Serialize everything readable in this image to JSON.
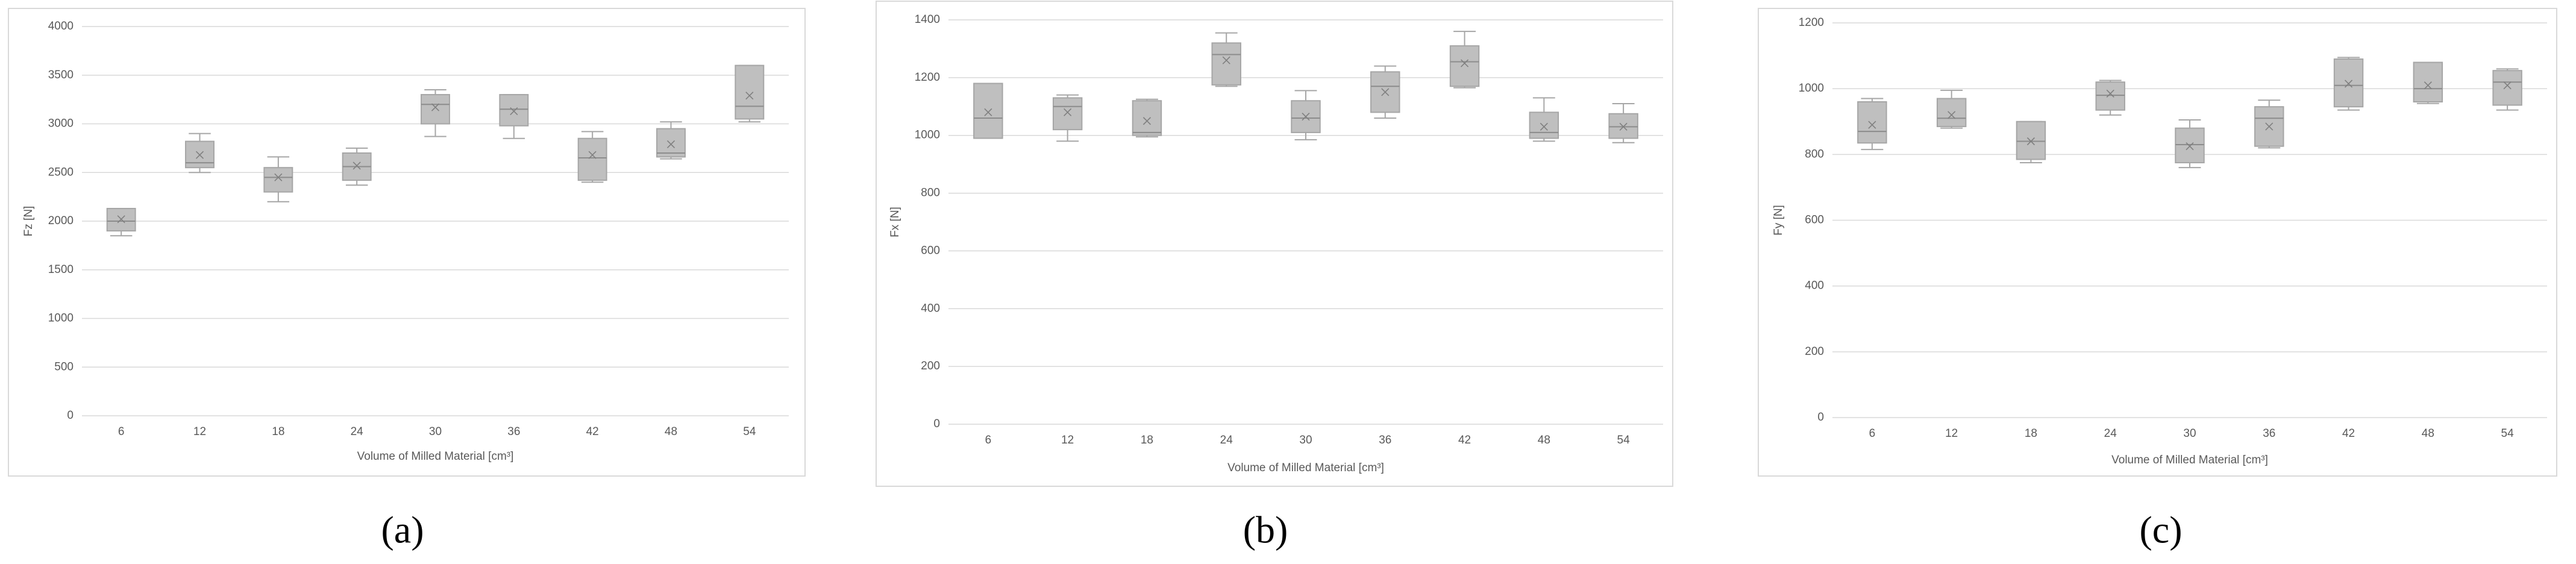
{
  "chart_data": [
    {
      "type": "box",
      "caption": "(a)",
      "y_label": "Fz [N]",
      "x_label": "Volume of Milled Material [cm³]",
      "categories": [
        "6",
        "12",
        "18",
        "24",
        "30",
        "36",
        "42",
        "48",
        "54"
      ],
      "min": [
        1850,
        2500,
        2200,
        2370,
        2870,
        2850,
        2400,
        2640,
        3020
      ],
      "q1": [
        1900,
        2550,
        2300,
        2420,
        3000,
        2980,
        2420,
        2660,
        3050
      ],
      "median": [
        2000,
        2600,
        2450,
        2560,
        3200,
        3150,
        2650,
        2700,
        3180
      ],
      "q3": [
        2130,
        2820,
        2550,
        2700,
        3300,
        3300,
        2850,
        2950,
        3600
      ],
      "max": [
        2130,
        2900,
        2660,
        2750,
        3350,
        3300,
        2920,
        3020,
        3600
      ],
      "mean": [
        2020,
        2680,
        2450,
        2570,
        3170,
        3130,
        2680,
        2790,
        3290
      ],
      "color": "#bfbfbf",
      "ylim": [
        0,
        4000
      ],
      "yticks": [
        0,
        500,
        1000,
        1500,
        2000,
        2500,
        3000,
        3500,
        4000
      ],
      "grid": true
    },
    {
      "type": "box",
      "caption": "(b)",
      "y_label": "Fx [N]",
      "x_label": "Volume of Milled Material [cm³]",
      "categories": [
        "6",
        "12",
        "18",
        "24",
        "30",
        "36",
        "42",
        "48",
        "54"
      ],
      "min": [
        990,
        980,
        995,
        1170,
        985,
        1060,
        1165,
        980,
        975
      ],
      "q1": [
        990,
        1020,
        1000,
        1175,
        1010,
        1080,
        1170,
        990,
        990
      ],
      "median": [
        1060,
        1100,
        1010,
        1280,
        1060,
        1170,
        1255,
        1010,
        1030
      ],
      "q3": [
        1180,
        1130,
        1120,
        1320,
        1120,
        1220,
        1310,
        1080,
        1075
      ],
      "max": [
        1180,
        1140,
        1125,
        1355,
        1155,
        1240,
        1360,
        1130,
        1110
      ],
      "mean": [
        1080,
        1080,
        1050,
        1260,
        1065,
        1150,
        1250,
        1030,
        1030
      ],
      "color": "#bfbfbf",
      "ylim": [
        0,
        1400
      ],
      "yticks": [
        0,
        200,
        400,
        600,
        800,
        1000,
        1200,
        1400
      ],
      "grid": true
    },
    {
      "type": "box",
      "caption": "(c)",
      "y_label": "Fy [N]",
      "x_label": "Volume of Milled Material [cm³]",
      "categories": [
        "6",
        "12",
        "18",
        "24",
        "30",
        "36",
        "42",
        "48",
        "54"
      ],
      "min": [
        815,
        880,
        775,
        920,
        760,
        820,
        935,
        955,
        935
      ],
      "q1": [
        835,
        885,
        785,
        935,
        775,
        825,
        945,
        960,
        950
      ],
      "median": [
        870,
        910,
        840,
        980,
        830,
        910,
        1010,
        1000,
        1020
      ],
      "q3": [
        960,
        970,
        900,
        1020,
        880,
        945,
        1090,
        1080,
        1055
      ],
      "max": [
        970,
        995,
        900,
        1025,
        905,
        965,
        1095,
        1080,
        1060
      ],
      "mean": [
        890,
        920,
        840,
        985,
        825,
        885,
        1015,
        1010,
        1010
      ],
      "color": "#bfbfbf",
      "ylim": [
        0,
        1200
      ],
      "yticks": [
        0,
        200,
        400,
        600,
        800,
        1000,
        1200
      ],
      "grid": true
    }
  ]
}
